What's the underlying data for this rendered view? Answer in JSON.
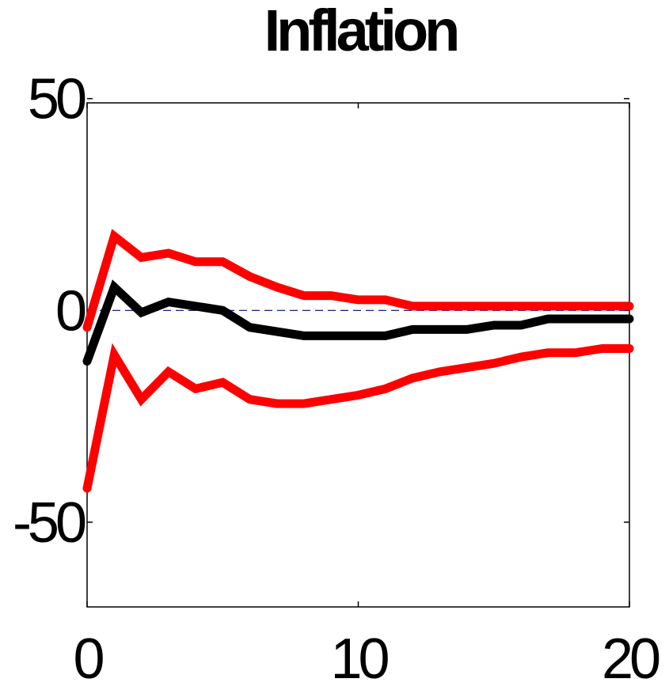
{
  "chart_data": {
    "type": "line",
    "title": "Inflation",
    "xlabel": "",
    "ylabel": "",
    "xlim": [
      0,
      20
    ],
    "ylim": [
      -70,
      49
    ],
    "xticks": [
      0,
      10,
      20
    ],
    "yticks": [
      50,
      0,
      -50
    ],
    "grid": false,
    "x": [
      0,
      1,
      2,
      3,
      4,
      5,
      6,
      7,
      8,
      9,
      10,
      11,
      12,
      13,
      14,
      15,
      16,
      17,
      18,
      19,
      20
    ],
    "series": [
      {
        "role": "upper-band",
        "color": "#ff0000",
        "values": [
          -4,
          17.5,
          12.5,
          13.5,
          11.5,
          11.5,
          8,
          5.5,
          3.5,
          3.5,
          2.5,
          2.5,
          1,
          1,
          1,
          1,
          1,
          1,
          1,
          1,
          1
        ]
      },
      {
        "role": "median",
        "color": "#000000",
        "values": [
          -12,
          5.5,
          -0.5,
          2,
          1,
          0,
          -4,
          -5,
          -6,
          -6,
          -6,
          -6,
          -4.5,
          -4.5,
          -4.5,
          -3.5,
          -3.5,
          -2,
          -2,
          -2,
          -2
        ]
      },
      {
        "role": "lower-band",
        "color": "#ff0000",
        "values": [
          -42,
          -10.5,
          -21,
          -14.5,
          -18.5,
          -17,
          -21,
          -22,
          -22,
          -21,
          -20,
          -18.5,
          -16,
          -14.5,
          -13.5,
          -12.5,
          -11,
          -10,
          -10,
          -9,
          -9
        ]
      }
    ],
    "zero_line": {
      "value": 0,
      "color": "#00007f",
      "style": "dashed"
    }
  }
}
